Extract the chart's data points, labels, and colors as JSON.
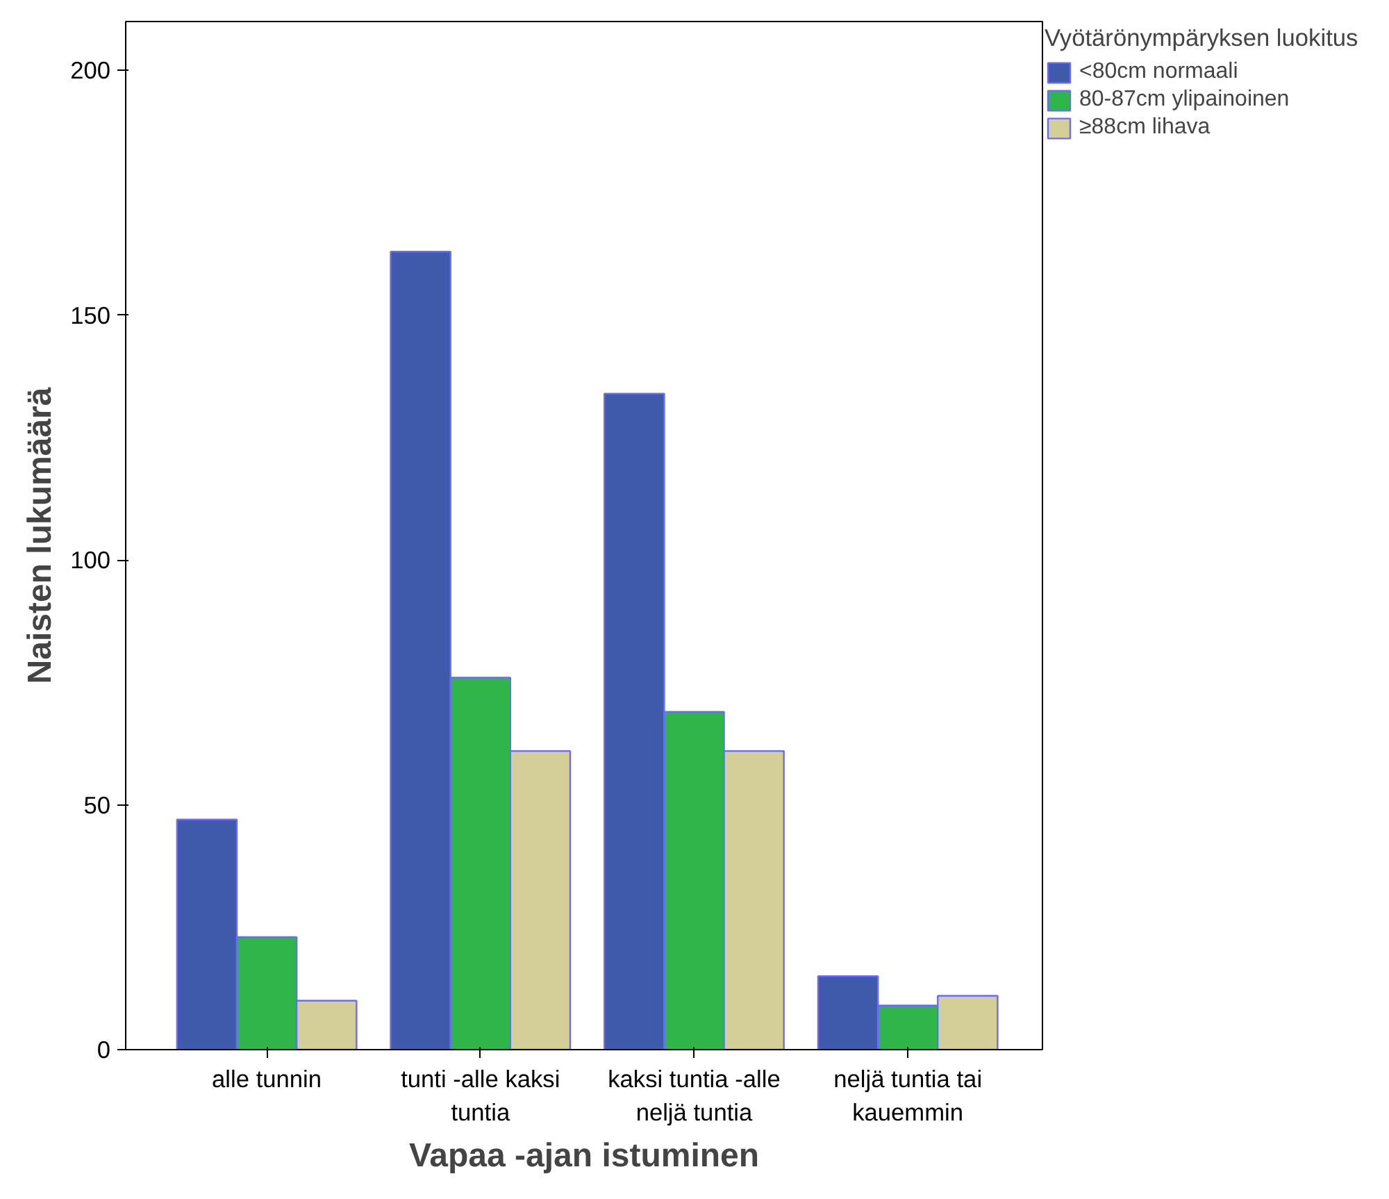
{
  "chart_data": {
    "type": "bar",
    "xlabel": "Vapaa -ajan istuminen",
    "ylabel": "Naisten lukumäärä",
    "legend_title": "Vyötärönympäryksen luokitus",
    "categories": [
      "alle tunnin",
      "tunti -alle kaksi tuntia",
      "kaksi tuntia -alle neljä tuntia",
      "neljä tuntia tai kauemmin"
    ],
    "series": [
      {
        "name": "<80cm normaali",
        "color": "#3f5aaa",
        "values": [
          47,
          163,
          134,
          15
        ]
      },
      {
        "name": "80-87cm ylipainoinen",
        "color": "#2fb54a",
        "values": [
          23,
          76,
          69,
          9
        ]
      },
      {
        "name": "≥88cm lihava",
        "color": "#d4cf98",
        "values": [
          10,
          61,
          61,
          11
        ]
      }
    ],
    "ylim": [
      0,
      210
    ],
    "yticks": [
      0,
      50,
      100,
      150,
      200
    ],
    "grid": false,
    "legend": "top right"
  }
}
